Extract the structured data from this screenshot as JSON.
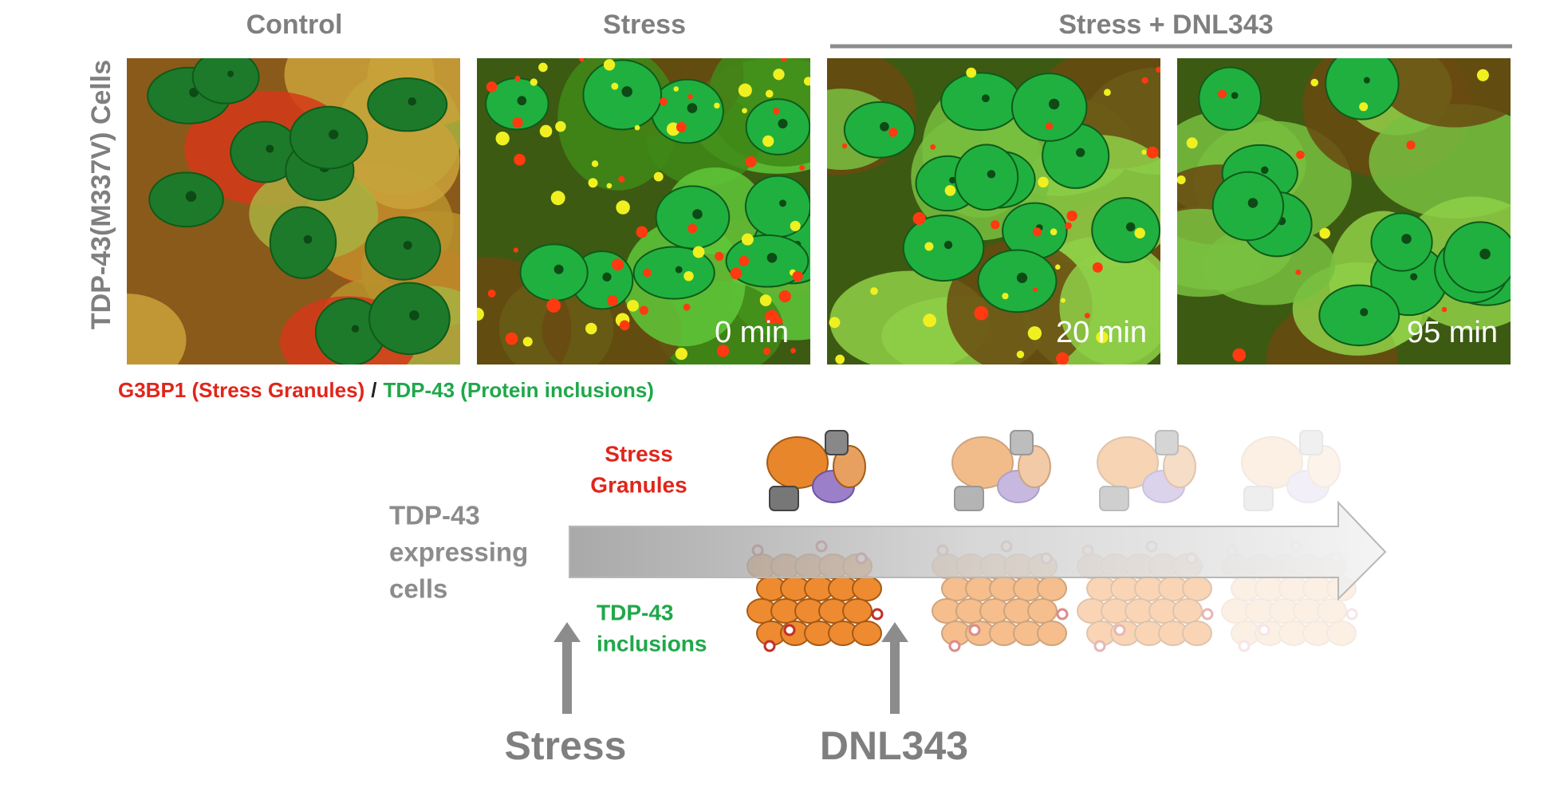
{
  "panels": {
    "headers": [
      "Control",
      "Stress",
      "Stress + DNL343"
    ],
    "row_label": "TDP-43(M337V) Cells",
    "time_labels": [
      "0 min",
      "20 min",
      "95 min"
    ]
  },
  "legend": {
    "red": "G3BP1 (Stress Granules)",
    "separator": "/",
    "green": "TDP-43 (Protein inclusions)"
  },
  "diagram": {
    "start_label": [
      "TDP-43",
      "expressing",
      "cells"
    ],
    "granules_label": [
      "Stress",
      "Granules"
    ],
    "inclusions_label": [
      "TDP-43",
      "inclusions"
    ],
    "triggers": [
      "Stress",
      "DNL343"
    ]
  }
}
